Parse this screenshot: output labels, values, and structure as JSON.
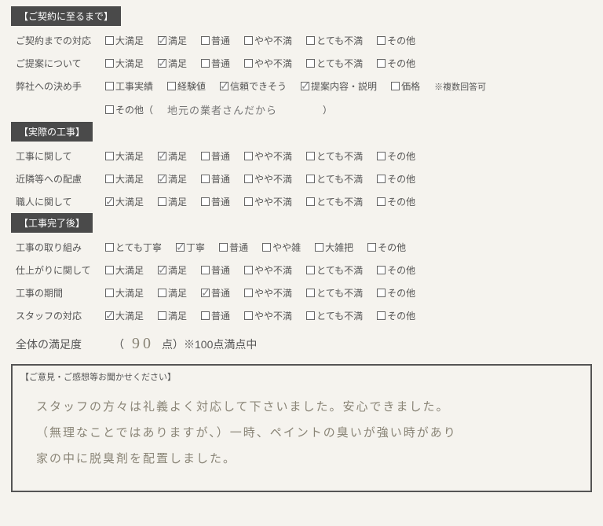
{
  "sections": [
    {
      "header": "【ご契約に至るまで】",
      "rows": [
        {
          "label": "ご契約までの対応",
          "options": [
            {
              "text": "大満足",
              "checked": false
            },
            {
              "text": "満足",
              "checked": true
            },
            {
              "text": "普通",
              "checked": false
            },
            {
              "text": "やや不満",
              "checked": false
            },
            {
              "text": "とても不満",
              "checked": false
            },
            {
              "text": "その他",
              "checked": false
            }
          ]
        },
        {
          "label": "ご提案について",
          "options": [
            {
              "text": "大満足",
              "checked": false
            },
            {
              "text": "満足",
              "checked": true
            },
            {
              "text": "普通",
              "checked": false
            },
            {
              "text": "やや不満",
              "checked": false
            },
            {
              "text": "とても不満",
              "checked": false
            },
            {
              "text": "その他",
              "checked": false
            }
          ]
        },
        {
          "label": "弊社への決め手",
          "options": [
            {
              "text": "工事実績",
              "checked": false
            },
            {
              "text": "経験値",
              "checked": false
            },
            {
              "text": "信頼できそう",
              "checked": true
            },
            {
              "text": "提案内容・説明",
              "checked": true
            },
            {
              "text": "価格",
              "checked": false
            }
          ],
          "note": "※複数回答可"
        },
        {
          "label": "",
          "options": [
            {
              "text": "その他（",
              "checked": false
            }
          ],
          "freetext": "地元の業者さんだから",
          "closeParen": "）"
        }
      ]
    },
    {
      "header": "【実際の工事】",
      "rows": [
        {
          "label": "工事に関して",
          "options": [
            {
              "text": "大満足",
              "checked": false
            },
            {
              "text": "満足",
              "checked": true
            },
            {
              "text": "普通",
              "checked": false
            },
            {
              "text": "やや不満",
              "checked": false
            },
            {
              "text": "とても不満",
              "checked": false
            },
            {
              "text": "その他",
              "checked": false
            }
          ]
        },
        {
          "label": "近隣等への配慮",
          "options": [
            {
              "text": "大満足",
              "checked": false
            },
            {
              "text": "満足",
              "checked": true
            },
            {
              "text": "普通",
              "checked": false
            },
            {
              "text": "やや不満",
              "checked": false
            },
            {
              "text": "とても不満",
              "checked": false
            },
            {
              "text": "その他",
              "checked": false
            }
          ]
        },
        {
          "label": "職人に関して",
          "options": [
            {
              "text": "大満足",
              "checked": true
            },
            {
              "text": "満足",
              "checked": false
            },
            {
              "text": "普通",
              "checked": false
            },
            {
              "text": "やや不満",
              "checked": false
            },
            {
              "text": "とても不満",
              "checked": false
            },
            {
              "text": "その他",
              "checked": false
            }
          ]
        }
      ]
    },
    {
      "header": "【工事完了後】",
      "rows": [
        {
          "label": "工事の取り組み",
          "options": [
            {
              "text": "とても丁寧",
              "checked": false
            },
            {
              "text": "丁寧",
              "checked": true
            },
            {
              "text": "普通",
              "checked": false
            },
            {
              "text": "やや雑",
              "checked": false
            },
            {
              "text": "大雑把",
              "checked": false
            },
            {
              "text": "その他",
              "checked": false
            }
          ]
        },
        {
          "label": "仕上がりに関して",
          "options": [
            {
              "text": "大満足",
              "checked": false
            },
            {
              "text": "満足",
              "checked": true
            },
            {
              "text": "普通",
              "checked": false
            },
            {
              "text": "やや不満",
              "checked": false
            },
            {
              "text": "とても不満",
              "checked": false
            },
            {
              "text": "その他",
              "checked": false
            }
          ]
        },
        {
          "label": "工事の期間",
          "options": [
            {
              "text": "大満足",
              "checked": false
            },
            {
              "text": "満足",
              "checked": false
            },
            {
              "text": "普通",
              "checked": true
            },
            {
              "text": "やや不満",
              "checked": false
            },
            {
              "text": "とても不満",
              "checked": false
            },
            {
              "text": "その他",
              "checked": false
            }
          ]
        },
        {
          "label": "スタッフの対応",
          "options": [
            {
              "text": "大満足",
              "checked": true
            },
            {
              "text": "満足",
              "checked": false
            },
            {
              "text": "普通",
              "checked": false
            },
            {
              "text": "やや不満",
              "checked": false
            },
            {
              "text": "とても不満",
              "checked": false
            },
            {
              "text": "その他",
              "checked": false
            }
          ]
        }
      ]
    }
  ],
  "overall": {
    "label": "全体の満足度",
    "open": "（",
    "score": "90",
    "unit": "点）※100点満点中"
  },
  "comments": {
    "title": "【ご意見・ご感想等お聞かせください】",
    "lines": [
      "スタッフの方々は礼義よく対応して下さいました。安心できました。",
      "（無理なことではありますが、）一時、ペイントの臭いが強い時があり",
      "家の中に脱臭剤を配置しました。"
    ]
  }
}
